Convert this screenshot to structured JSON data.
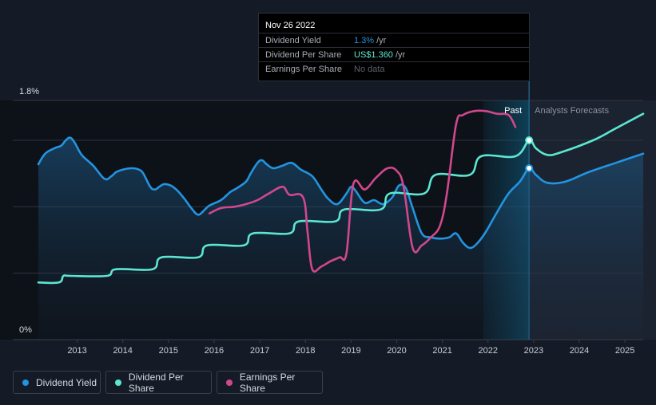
{
  "tooltip": {
    "date": "Nov 26 2022",
    "rows": [
      {
        "label": "Dividend Yield",
        "value": "1.3%",
        "unit": "/yr",
        "color": "#2394df"
      },
      {
        "label": "Dividend Per Share",
        "value": "US$1.360",
        "unit": "/yr",
        "color": "#5ce6d1"
      },
      {
        "label": "Earnings Per Share",
        "value": "No data",
        "unit": "",
        "color": "#5c616b"
      }
    ]
  },
  "legend": [
    {
      "label": "Dividend Yield",
      "color": "#2394df"
    },
    {
      "label": "Dividend Per Share",
      "color": "#5ce6d1"
    },
    {
      "label": "Earnings Per Share",
      "color": "#d0488c"
    }
  ],
  "chart_data": {
    "type": "line",
    "y_axis": {
      "top_label": "1.8%",
      "bottom_label": "0%",
      "ylim": [
        0,
        1.8
      ]
    },
    "x_ticks": [
      "2013",
      "2014",
      "2015",
      "2016",
      "2017",
      "2018",
      "2019",
      "2020",
      "2021",
      "2022",
      "2023",
      "2024",
      "2025"
    ],
    "xlim": [
      2012.15,
      2025.4
    ],
    "divider_x": 2022.9,
    "past_label": "Past",
    "forecast_label": "Analysts Forecasts",
    "highlight_band": [
      2021.9,
      2022.9
    ],
    "grid": true,
    "series": [
      {
        "name": "Dividend Yield",
        "color": "#2394df",
        "fill": true,
        "values": [
          [
            2012.15,
            1.32
          ],
          [
            2012.3,
            1.4
          ],
          [
            2012.5,
            1.44
          ],
          [
            2012.65,
            1.46
          ],
          [
            2012.75,
            1.5
          ],
          [
            2012.85,
            1.52
          ],
          [
            2012.95,
            1.48
          ],
          [
            2013.1,
            1.39
          ],
          [
            2013.35,
            1.31
          ],
          [
            2013.6,
            1.21
          ],
          [
            2013.75,
            1.23
          ],
          [
            2013.85,
            1.26
          ],
          [
            2014.0,
            1.28
          ],
          [
            2014.2,
            1.29
          ],
          [
            2014.35,
            1.28
          ],
          [
            2014.45,
            1.25
          ],
          [
            2014.6,
            1.15
          ],
          [
            2014.7,
            1.13
          ],
          [
            2014.8,
            1.15
          ],
          [
            2014.9,
            1.17
          ],
          [
            2015.05,
            1.16
          ],
          [
            2015.2,
            1.12
          ],
          [
            2015.35,
            1.06
          ],
          [
            2015.5,
            0.99
          ],
          [
            2015.65,
            0.94
          ],
          [
            2015.8,
            0.98
          ],
          [
            2015.9,
            1.01
          ],
          [
            2016.15,
            1.05
          ],
          [
            2016.35,
            1.11
          ],
          [
            2016.5,
            1.14
          ],
          [
            2016.7,
            1.19
          ],
          [
            2016.8,
            1.25
          ],
          [
            2016.95,
            1.33
          ],
          [
            2017.05,
            1.35
          ],
          [
            2017.15,
            1.32
          ],
          [
            2017.3,
            1.29
          ],
          [
            2017.5,
            1.31
          ],
          [
            2017.7,
            1.33
          ],
          [
            2017.9,
            1.28
          ],
          [
            2018.15,
            1.23
          ],
          [
            2018.35,
            1.13
          ],
          [
            2018.5,
            1.06
          ],
          [
            2018.7,
            1.02
          ],
          [
            2018.9,
            1.1
          ],
          [
            2019.0,
            1.15
          ],
          [
            2019.1,
            1.12
          ],
          [
            2019.3,
            1.03
          ],
          [
            2019.5,
            1.05
          ],
          [
            2019.7,
            1.02
          ],
          [
            2019.9,
            1.07
          ],
          [
            2020.05,
            1.16
          ],
          [
            2020.2,
            1.14
          ],
          [
            2020.35,
            0.99
          ],
          [
            2020.55,
            0.8
          ],
          [
            2020.75,
            0.77
          ],
          [
            2020.95,
            0.76
          ],
          [
            2021.15,
            0.77
          ],
          [
            2021.3,
            0.8
          ],
          [
            2021.45,
            0.73
          ],
          [
            2021.6,
            0.69
          ],
          [
            2021.75,
            0.72
          ],
          [
            2021.95,
            0.81
          ],
          [
            2022.2,
            0.96
          ],
          [
            2022.45,
            1.1
          ],
          [
            2022.7,
            1.19
          ],
          [
            2022.9,
            1.29
          ],
          [
            2023.05,
            1.24
          ],
          [
            2023.3,
            1.18
          ],
          [
            2023.7,
            1.19
          ],
          [
            2024.2,
            1.26
          ],
          [
            2024.8,
            1.33
          ],
          [
            2025.4,
            1.4
          ]
        ]
      },
      {
        "name": "Dividend Per Share",
        "color": "#5ce6d1",
        "fill": false,
        "values": [
          [
            2012.15,
            0.43
          ],
          [
            2012.6,
            0.43
          ],
          [
            2012.7,
            0.48
          ],
          [
            2012.85,
            0.48
          ],
          [
            2013.65,
            0.48
          ],
          [
            2013.85,
            0.53
          ],
          [
            2014.65,
            0.53
          ],
          [
            2014.85,
            0.62
          ],
          [
            2015.65,
            0.62
          ],
          [
            2015.85,
            0.71
          ],
          [
            2016.65,
            0.71
          ],
          [
            2016.85,
            0.8
          ],
          [
            2017.65,
            0.8
          ],
          [
            2017.85,
            0.89
          ],
          [
            2018.65,
            0.89
          ],
          [
            2018.85,
            0.98
          ],
          [
            2019.65,
            0.98
          ],
          [
            2019.85,
            1.1
          ],
          [
            2020.6,
            1.1
          ],
          [
            2020.85,
            1.24
          ],
          [
            2021.6,
            1.24
          ],
          [
            2021.85,
            1.38
          ],
          [
            2022.6,
            1.38
          ],
          [
            2022.9,
            1.5
          ],
          [
            2023.05,
            1.44
          ],
          [
            2023.3,
            1.39
          ],
          [
            2023.6,
            1.41
          ],
          [
            2024.3,
            1.5
          ],
          [
            2024.8,
            1.59
          ],
          [
            2025.4,
            1.7
          ]
        ]
      },
      {
        "name": "Earnings Per Share",
        "color": "#d0488c",
        "fill": false,
        "values": [
          [
            2015.9,
            0.95
          ],
          [
            2016.15,
            0.99
          ],
          [
            2016.45,
            1.0
          ],
          [
            2016.7,
            1.02
          ],
          [
            2016.95,
            1.05
          ],
          [
            2017.2,
            1.1
          ],
          [
            2017.5,
            1.15
          ],
          [
            2017.65,
            1.09
          ],
          [
            2017.95,
            1.07
          ],
          [
            2018.05,
            0.8
          ],
          [
            2018.15,
            0.53
          ],
          [
            2018.35,
            0.55
          ],
          [
            2018.55,
            0.59
          ],
          [
            2018.75,
            0.62
          ],
          [
            2018.9,
            0.65
          ],
          [
            2019.05,
            1.17
          ],
          [
            2019.3,
            1.13
          ],
          [
            2019.55,
            1.22
          ],
          [
            2019.8,
            1.29
          ],
          [
            2020.0,
            1.27
          ],
          [
            2020.15,
            1.15
          ],
          [
            2020.35,
            0.69
          ],
          [
            2020.55,
            0.71
          ],
          [
            2020.75,
            0.77
          ],
          [
            2020.95,
            0.86
          ],
          [
            2021.1,
            1.1
          ],
          [
            2021.3,
            1.62
          ],
          [
            2021.45,
            1.69
          ],
          [
            2021.7,
            1.72
          ],
          [
            2021.95,
            1.72
          ],
          [
            2022.2,
            1.7
          ],
          [
            2022.45,
            1.69
          ],
          [
            2022.6,
            1.6
          ]
        ]
      }
    ],
    "markers": [
      {
        "series": "Dividend Yield",
        "x": 2022.9,
        "y": 1.29
      },
      {
        "series": "Dividend Per Share",
        "x": 2022.9,
        "y": 1.5
      }
    ]
  }
}
